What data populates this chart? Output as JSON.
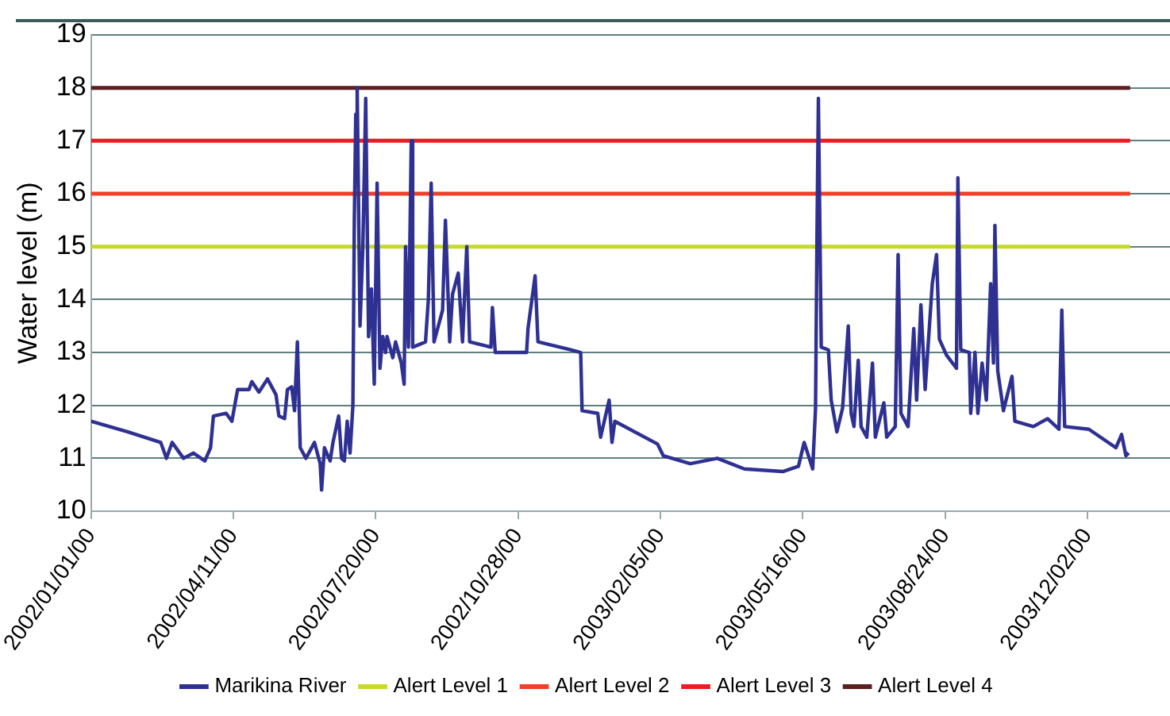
{
  "chart_data": {
    "type": "line",
    "ylabel": "Water level (m)",
    "legend": "bottom",
    "grid": "y",
    "marker": "none",
    "line_style": "solid",
    "xlim": [
      "2002-01-01",
      "2004-01-29"
    ],
    "xticks": [
      {
        "value": "2002-01-01",
        "label": "2002/01/01/00"
      },
      {
        "value": "2002-04-11",
        "label": "2002/04/11/00"
      },
      {
        "value": "2002-07-20",
        "label": "2002/07/20/00"
      },
      {
        "value": "2002-10-28",
        "label": "2002/10/28/00"
      },
      {
        "value": "2003-02-05",
        "label": "2003/02/05/00"
      },
      {
        "value": "2003-05-16",
        "label": "2003/05/16/00"
      },
      {
        "value": "2003-08-24",
        "label": "2003/08/24/00"
      },
      {
        "value": "2003-12-02",
        "label": "2003/12/02/00"
      }
    ],
    "ylim": [
      10,
      19
    ],
    "yticks": [
      10,
      11,
      12,
      13,
      14,
      15,
      16,
      17,
      18,
      19
    ],
    "series": [
      {
        "name": "Marikina River",
        "color": "#2e3192",
        "x": [
          "2002-01-01",
          "2002-01-27",
          "2002-02-19",
          "2002-02-23",
          "2002-02-27",
          "2002-03-07",
          "2002-03-14",
          "2002-03-22",
          "2002-03-26",
          "2002-03-28",
          "2002-04-06",
          "2002-04-10",
          "2002-04-14",
          "2002-04-22",
          "2002-04-24",
          "2002-04-29",
          "2002-05-05",
          "2002-05-11",
          "2002-05-13",
          "2002-05-17",
          "2002-05-19",
          "2002-05-22",
          "2002-05-24",
          "2002-05-26",
          "2002-05-28",
          "2002-06-01",
          "2002-06-07",
          "2002-06-11",
          "2002-06-12",
          "2002-06-14",
          "2002-06-18",
          "2002-06-20",
          "2002-06-24",
          "2002-06-26",
          "2002-06-28",
          "2002-06-30",
          "2002-07-02",
          "2002-07-04",
          "2002-07-05",
          "2002-07-06",
          "2002-07-07",
          "2002-07-09",
          "2002-07-11",
          "2002-07-13",
          "2002-07-15",
          "2002-07-17",
          "2002-07-19",
          "2002-07-21",
          "2002-07-23",
          "2002-07-25",
          "2002-07-27",
          "2002-07-28",
          "2002-08-01",
          "2002-08-03",
          "2002-08-07",
          "2002-08-09",
          "2002-08-10",
          "2002-08-12",
          "2002-08-14",
          "2002-08-15",
          "2002-08-24",
          "2002-08-26",
          "2002-08-28",
          "2002-08-30",
          "2002-09-05",
          "2002-09-07",
          "2002-09-10",
          "2002-09-12",
          "2002-09-16",
          "2002-09-19",
          "2002-09-22",
          "2002-09-24",
          "2002-10-09",
          "2002-10-10",
          "2002-10-12",
          "2002-11-03",
          "2002-11-04",
          "2002-11-09",
          "2002-11-11",
          "2002-12-04",
          "2002-12-11",
          "2002-12-12",
          "2002-12-23",
          "2002-12-25",
          "2002-12-31",
          "2003-01-02",
          "2003-01-04",
          "2003-02-03",
          "2003-02-07",
          "2003-02-26",
          "2003-03-17",
          "2003-04-05",
          "2003-05-02",
          "2003-05-13",
          "2003-05-17",
          "2003-05-23",
          "2003-05-25",
          "2003-05-26",
          "2003-05-27",
          "2003-05-29",
          "2003-06-03",
          "2003-06-05",
          "2003-06-09",
          "2003-06-13",
          "2003-06-17",
          "2003-06-19",
          "2003-06-21",
          "2003-06-24",
          "2003-06-26",
          "2003-06-30",
          "2003-07-04",
          "2003-07-06",
          "2003-07-12",
          "2003-07-14",
          "2003-07-20",
          "2003-07-22",
          "2003-07-24",
          "2003-07-29",
          "2003-08-02",
          "2003-08-04",
          "2003-08-07",
          "2003-08-10",
          "2003-08-15",
          "2003-08-18",
          "2003-08-20",
          "2003-08-25",
          "2003-09-01",
          "2003-09-02",
          "2003-09-04",
          "2003-09-10",
          "2003-09-11",
          "2003-09-14",
          "2003-09-16",
          "2003-09-19",
          "2003-09-22",
          "2003-09-25",
          "2003-09-27",
          "2003-09-28",
          "2003-09-30",
          "2003-10-04",
          "2003-10-10",
          "2003-10-12",
          "2003-10-25",
          "2003-11-04",
          "2003-11-12",
          "2003-11-14",
          "2003-11-16",
          "2003-12-03",
          "2003-12-22",
          "2003-12-26",
          "2003-12-29",
          "2003-12-31"
        ],
        "values": [
          11.7,
          11.5,
          11.3,
          11.0,
          11.3,
          11.0,
          11.1,
          10.95,
          11.2,
          11.8,
          11.85,
          11.7,
          12.3,
          12.3,
          12.45,
          12.25,
          12.5,
          12.2,
          11.8,
          11.75,
          12.3,
          12.35,
          11.9,
          13.2,
          11.2,
          11.0,
          11.3,
          10.9,
          10.4,
          11.2,
          10.95,
          11.3,
          11.8,
          11.0,
          10.95,
          11.7,
          11.1,
          12.0,
          15.5,
          17.5,
          18.0,
          13.5,
          15.0,
          17.8,
          13.3,
          14.2,
          12.4,
          16.2,
          12.7,
          13.3,
          13.0,
          13.3,
          12.9,
          13.2,
          12.8,
          12.4,
          15.0,
          13.1,
          17.0,
          13.1,
          13.2,
          14.0,
          16.2,
          13.2,
          13.8,
          15.5,
          13.2,
          14.1,
          14.5,
          13.2,
          15.0,
          13.2,
          13.1,
          13.85,
          13.0,
          13.0,
          13.45,
          14.45,
          13.2,
          13.05,
          13.0,
          11.9,
          11.85,
          11.4,
          12.1,
          11.3,
          11.7,
          11.27,
          11.05,
          10.9,
          11.0,
          10.8,
          10.75,
          10.85,
          11.3,
          10.8,
          11.95,
          15.2,
          17.8,
          13.1,
          13.05,
          12.1,
          11.5,
          11.95,
          13.5,
          11.85,
          11.6,
          12.85,
          11.6,
          11.4,
          12.8,
          11.4,
          12.05,
          11.4,
          11.6,
          14.85,
          11.85,
          11.6,
          13.45,
          12.1,
          13.9,
          12.3,
          14.3,
          14.85,
          13.25,
          12.95,
          12.7,
          16.3,
          13.05,
          13.0,
          11.85,
          13.0,
          11.85,
          12.8,
          12.1,
          14.3,
          12.8,
          15.4,
          12.65,
          11.9,
          12.55,
          11.7,
          11.6,
          11.75,
          11.55,
          13.8,
          11.6,
          11.55,
          11.2,
          11.45,
          11.05,
          11.1
        ]
      },
      {
        "name": "Alert Level 1",
        "color": "#c8d92b",
        "x": [
          "2002-01-01",
          "2004-01-01"
        ],
        "values": [
          15,
          15
        ]
      },
      {
        "name": "Alert Level 2",
        "color": "#f0402a",
        "x": [
          "2002-01-01",
          "2004-01-01"
        ],
        "values": [
          16,
          16
        ]
      },
      {
        "name": "Alert Level 3",
        "color": "#ed1c24",
        "x": [
          "2002-01-01",
          "2004-01-01"
        ],
        "values": [
          17,
          17
        ]
      },
      {
        "name": "Alert Level 4",
        "color": "#5c1f1f",
        "x": [
          "2002-01-01",
          "2004-01-01"
        ],
        "values": [
          18,
          18
        ]
      }
    ]
  }
}
